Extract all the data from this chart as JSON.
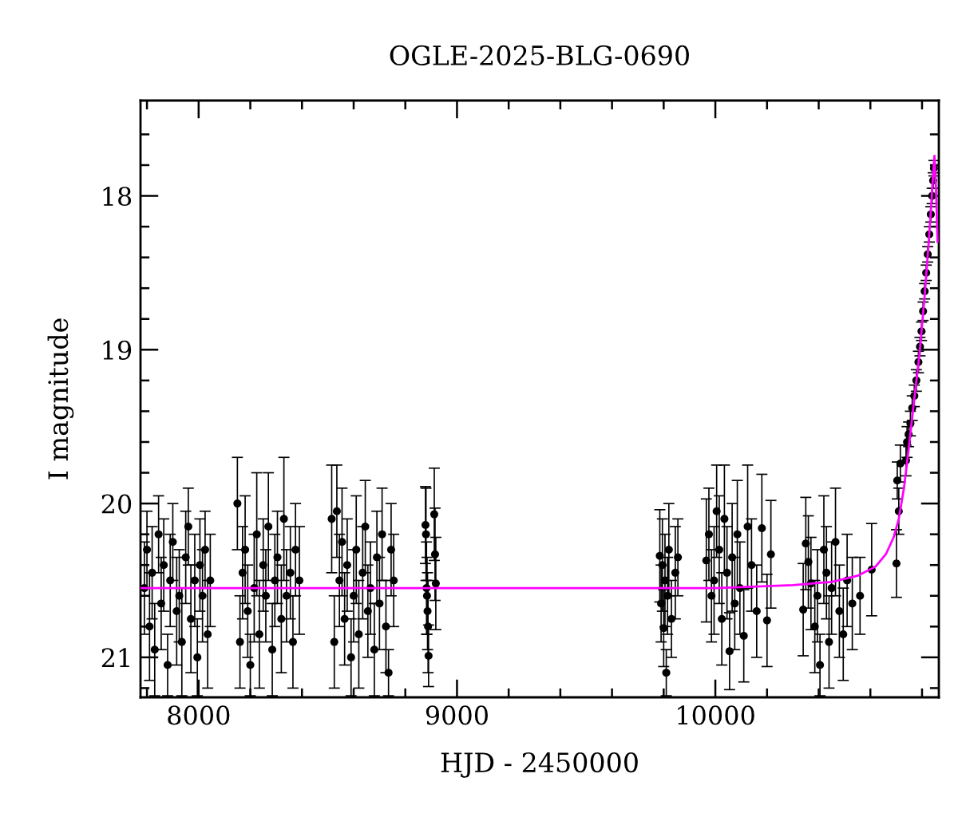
{
  "chart_data": {
    "type": "scatter",
    "title": "OGLE-2025-BLG-0690",
    "xlabel": "HJD - 2450000",
    "ylabel": "I magnitude",
    "xlim": [
      7775,
      10865
    ],
    "ylim": [
      21.26,
      17.38
    ],
    "xticks": [
      {
        "value": 7800,
        "label": null
      },
      8000,
      {
        "value": 8200,
        "label": null
      },
      {
        "value": 8400,
        "label": null
      },
      {
        "value": 8600,
        "label": null
      },
      {
        "value": 8800,
        "label": null
      },
      9000,
      {
        "value": 9200,
        "label": null
      },
      {
        "value": 9400,
        "label": null
      },
      {
        "value": 9600,
        "label": null
      },
      {
        "value": 9800,
        "label": null
      },
      10000,
      {
        "value": 10200,
        "label": null
      },
      {
        "value": 10400,
        "label": null
      },
      {
        "value": 10600,
        "label": null
      },
      {
        "value": 10800,
        "label": null
      }
    ],
    "yticks": [
      {
        "value": 17.6,
        "label": null
      },
      {
        "value": 17.8,
        "label": null
      },
      18,
      {
        "value": 18.2,
        "label": null
      },
      {
        "value": 18.4,
        "label": null
      },
      {
        "value": 18.6,
        "label": null
      },
      {
        "value": 18.8,
        "label": null
      },
      19,
      {
        "value": 19.2,
        "label": null
      },
      {
        "value": 19.4,
        "label": null
      },
      {
        "value": 19.6,
        "label": null
      },
      {
        "value": 19.8,
        "label": null
      },
      20,
      {
        "value": 20.2,
        "label": null
      },
      {
        "value": 20.4,
        "label": null
      },
      {
        "value": 20.6,
        "label": null
      },
      {
        "value": 20.8,
        "label": null
      },
      21,
      {
        "value": 21.2,
        "label": null
      }
    ],
    "series": [
      {
        "color": "#000000",
        "marker": "circle",
        "x": [
          7790,
          7800,
          7810,
          7820,
          7830,
          7845,
          7855,
          7865,
          7880,
          7890,
          7900,
          7915,
          7925,
          7935,
          7950,
          7960,
          7970,
          7985,
          7995,
          8005,
          8015,
          8025,
          8035,
          8045,
          8150,
          8160,
          8170,
          8180,
          8190,
          8200,
          8215,
          8225,
          8235,
          8250,
          8260,
          8270,
          8285,
          8295,
          8305,
          8320,
          8330,
          8340,
          8355,
          8365,
          8375,
          8390,
          8515,
          8525,
          8535,
          8545,
          8555,
          8565,
          8575,
          8590,
          8600,
          8610,
          8620,
          8635,
          8645,
          8655,
          8665,
          8680,
          8690,
          8700,
          8710,
          8725,
          8735,
          8745,
          8755,
          8878,
          8880,
          8882,
          8884,
          8886,
          8888,
          8890,
          8912,
          8915,
          8918,
          9785,
          9790,
          9795,
          9800,
          9805,
          9810,
          9815,
          9820,
          9830,
          9845,
          9855,
          9965,
          9975,
          9985,
          9995,
          10005,
          10015,
          10025,
          10035,
          10045,
          10055,
          10065,
          10075,
          10085,
          10095,
          10110,
          10125,
          10140,
          10160,
          10180,
          10200,
          10215,
          10340,
          10350,
          10360,
          10370,
          10385,
          10395,
          10405,
          10420,
          10430,
          10440,
          10450,
          10465,
          10480,
          10495,
          10510,
          10530,
          10560,
          10605,
          10701,
          10704,
          10710,
          10716,
          10738,
          10742,
          10748,
          10755,
          10762,
          10770,
          10778,
          10786,
          10792,
          10798,
          10804,
          10810,
          10816,
          10822,
          10828,
          10834,
          10839,
          10843,
          10846
        ],
        "values": [
          20.55,
          20.3,
          20.8,
          20.45,
          20.95,
          20.2,
          20.65,
          20.4,
          21.05,
          20.5,
          20.25,
          20.7,
          20.6,
          20.9,
          20.35,
          20.15,
          20.75,
          20.5,
          21.0,
          20.4,
          20.6,
          20.3,
          20.85,
          20.5,
          20.0,
          20.9,
          20.45,
          20.3,
          20.7,
          21.05,
          20.55,
          20.2,
          20.85,
          20.4,
          20.6,
          20.15,
          20.95,
          20.5,
          20.35,
          20.75,
          20.1,
          20.6,
          20.45,
          20.9,
          20.3,
          20.5,
          20.1,
          20.9,
          20.05,
          20.5,
          20.25,
          20.75,
          20.4,
          21.0,
          20.6,
          20.3,
          20.85,
          20.45,
          20.15,
          20.7,
          20.55,
          20.95,
          20.35,
          20.65,
          20.2,
          20.8,
          21.1,
          20.3,
          20.5,
          20.14,
          20.2,
          20.55,
          20.6,
          20.7,
          20.8,
          20.99,
          20.07,
          20.33,
          20.52,
          20.34,
          20.65,
          20.4,
          20.81,
          20.5,
          21.1,
          20.6,
          20.3,
          20.75,
          20.45,
          20.35,
          20.37,
          20.2,
          20.6,
          20.5,
          20.05,
          20.3,
          20.75,
          20.1,
          20.45,
          20.96,
          20.35,
          20.65,
          20.2,
          20.55,
          20.86,
          20.15,
          20.4,
          20.7,
          20.16,
          20.76,
          20.33,
          20.69,
          20.26,
          20.38,
          20.52,
          20.8,
          20.6,
          21.05,
          20.3,
          20.45,
          20.9,
          20.55,
          20.25,
          20.7,
          20.85,
          20.5,
          20.65,
          20.6,
          20.43,
          20.39,
          19.85,
          20.05,
          19.74,
          19.72,
          19.6,
          19.55,
          19.48,
          19.38,
          19.3,
          19.2,
          19.08,
          18.98,
          18.88,
          18.75,
          18.62,
          18.5,
          18.38,
          18.25,
          18.12,
          18.0,
          17.9,
          17.82
        ],
        "errors": [
          0.3,
          0.25,
          0.35,
          0.3,
          0.3,
          0.25,
          0.3,
          0.3,
          0.2,
          0.3,
          0.25,
          0.35,
          0.3,
          0.35,
          0.3,
          0.25,
          0.35,
          0.3,
          0.25,
          0.3,
          0.3,
          0.25,
          0.35,
          0.3,
          0.3,
          0.3,
          0.3,
          0.35,
          0.3,
          0.2,
          0.35,
          0.4,
          0.35,
          0.3,
          0.3,
          0.35,
          0.3,
          0.3,
          0.3,
          0.35,
          0.4,
          0.3,
          0.3,
          0.3,
          0.3,
          0.35,
          0.35,
          0.3,
          0.3,
          0.3,
          0.35,
          0.3,
          0.3,
          0.25,
          0.3,
          0.35,
          0.35,
          0.3,
          0.3,
          0.3,
          0.3,
          0.3,
          0.3,
          0.3,
          0.3,
          0.3,
          0.15,
          0.3,
          0.3,
          0.25,
          0.3,
          0.3,
          0.25,
          0.25,
          0.3,
          0.2,
          0.3,
          0.3,
          0.3,
          0.3,
          0.25,
          0.3,
          0.25,
          0.3,
          0.15,
          0.25,
          0.3,
          0.25,
          0.3,
          0.25,
          0.4,
          0.3,
          0.3,
          0.35,
          0.3,
          0.35,
          0.3,
          0.35,
          0.3,
          0.25,
          0.35,
          0.3,
          0.35,
          0.3,
          0.3,
          0.4,
          0.3,
          0.3,
          0.35,
          0.3,
          0.35,
          0.3,
          0.3,
          0.3,
          0.3,
          0.3,
          0.3,
          0.2,
          0.35,
          0.3,
          0.3,
          0.3,
          0.35,
          0.3,
          0.3,
          0.3,
          0.3,
          0.25,
          0.3,
          0.22,
          0.12,
          0.15,
          0.12,
          0.1,
          0.1,
          0.08,
          0.08,
          0.08,
          0.07,
          0.07,
          0.07,
          0.06,
          0.06,
          0.06,
          0.05,
          0.05,
          0.05,
          0.05,
          0.05,
          0.05,
          0.05,
          0.05
        ]
      },
      {
        "type": "line",
        "color": "#ff00ff",
        "marker": "none",
        "line_style": "solid",
        "x": [
          7775,
          10000,
          10300,
          10450,
          10550,
          10620,
          10660,
          10690,
          10710,
          10730,
          10750,
          10770,
          10790,
          10810,
          10825,
          10836,
          10842,
          10848,
          10854,
          10860
        ],
        "values": [
          20.55,
          20.55,
          20.53,
          20.51,
          20.47,
          20.41,
          20.33,
          20.22,
          20.1,
          19.9,
          19.62,
          19.32,
          19.03,
          18.65,
          18.32,
          18.05,
          17.88,
          17.74,
          17.95,
          18.3
        ]
      }
    ]
  }
}
